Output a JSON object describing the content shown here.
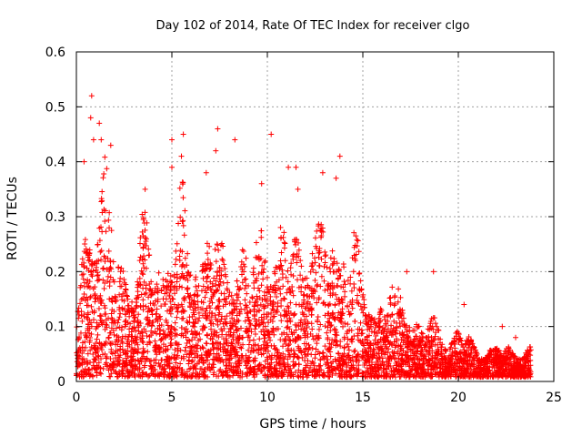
{
  "chart_data": {
    "type": "scatter",
    "title": "Day 102 of 2014, Rate Of TEC Index for receiver clgo",
    "xlabel": "GPS time / hours",
    "ylabel": "ROTI / TECUs",
    "xlim": [
      0,
      25
    ],
    "ylim": [
      0,
      0.6
    ],
    "xticks": [
      0,
      5,
      10,
      15,
      20,
      25
    ],
    "yticks": [
      0,
      0.1,
      0.2,
      0.3,
      0.4,
      0.5,
      0.6
    ],
    "xtick_labels": [
      "0",
      "5",
      "10",
      "15",
      "20",
      "25"
    ],
    "ytick_labels": [
      "0",
      "0.1",
      "0.2",
      "0.3",
      "0.4",
      "0.5",
      "0.6"
    ],
    "grid": true,
    "marker": "+",
    "color": "#ff0000",
    "series": [
      {
        "name": "ROTI",
        "envelope_x": [
          0,
          0.5,
          1,
          1.5,
          2,
          2.5,
          3,
          3.5,
          4,
          4.5,
          5,
          5.5,
          6,
          6.5,
          7,
          7.5,
          8,
          8.5,
          9,
          9.5,
          10,
          10.5,
          11,
          11.5,
          12,
          12.5,
          13,
          13.5,
          14,
          14.5,
          15,
          15.5,
          16,
          16.5,
          17,
          17.5,
          18,
          18.5,
          19,
          19.5,
          20,
          20.5,
          21,
          21.5,
          22,
          22.5,
          23,
          23.5,
          23.8
        ],
        "envelope_max": [
          0.17,
          0.3,
          0.4,
          0.45,
          0.3,
          0.25,
          0.23,
          0.33,
          0.25,
          0.3,
          0.3,
          0.4,
          0.28,
          0.3,
          0.36,
          0.25,
          0.27,
          0.3,
          0.27,
          0.3,
          0.32,
          0.3,
          0.32,
          0.3,
          0.32,
          0.33,
          0.33,
          0.3,
          0.35,
          0.3,
          0.2,
          0.17,
          0.2,
          0.18,
          0.18,
          0.15,
          0.12,
          0.12,
          0.11,
          0.08,
          0.1,
          0.09,
          0.06,
          0.06,
          0.06,
          0.07,
          0.06,
          0.06,
          0.06
        ],
        "points": [
          [
            0.8,
            0.52
          ],
          [
            0.75,
            0.48
          ],
          [
            1.2,
            0.47
          ],
          [
            0.9,
            0.44
          ],
          [
            1.3,
            0.44
          ],
          [
            1.8,
            0.43
          ],
          [
            5.0,
            0.44
          ],
          [
            5.6,
            0.45
          ],
          [
            7.4,
            0.46
          ],
          [
            8.3,
            0.44
          ],
          [
            10.2,
            0.45
          ],
          [
            5.5,
            0.41
          ],
          [
            7.3,
            0.42
          ],
          [
            11.1,
            0.39
          ],
          [
            11.5,
            0.39
          ],
          [
            13.8,
            0.41
          ],
          [
            12.9,
            0.38
          ],
          [
            0.4,
            0.4
          ],
          [
            5.0,
            0.39
          ],
          [
            6.8,
            0.38
          ],
          [
            13.6,
            0.37
          ],
          [
            9.7,
            0.36
          ],
          [
            11.6,
            0.35
          ],
          [
            3.6,
            0.35
          ],
          [
            18.7,
            0.2
          ],
          [
            17.3,
            0.2
          ],
          [
            20.3,
            0.14
          ],
          [
            22.3,
            0.1
          ],
          [
            23.0,
            0.08
          ]
        ]
      }
    ]
  }
}
